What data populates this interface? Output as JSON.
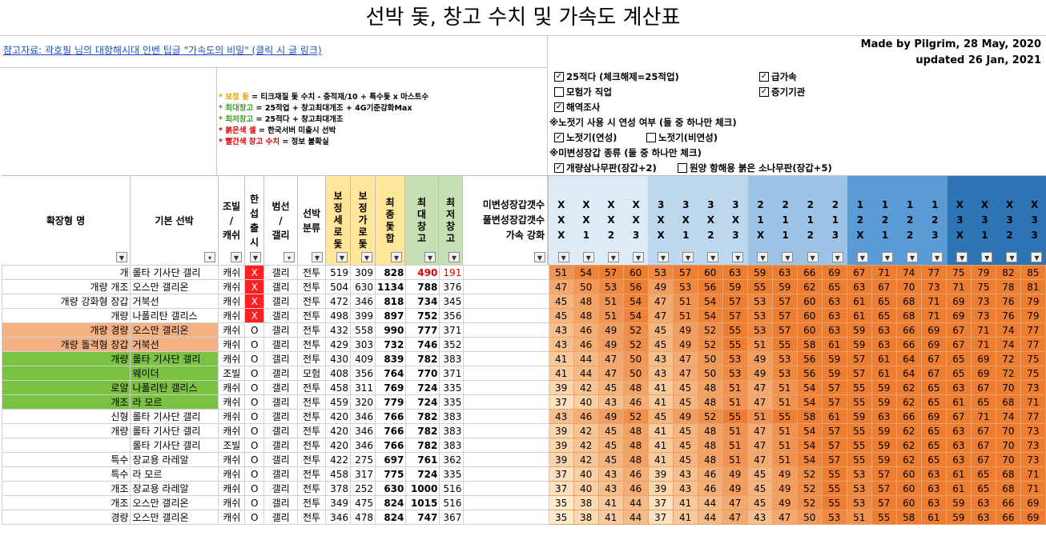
{
  "title": "선박 돛, 창고 수치 및 가속도 계산표",
  "reference_link": "참고자료: 곽호필 님의 대항해시대 인벤 팁글 \"가속도의 비밀\" (클릭 시 글 링크)",
  "credit": {
    "line1": "Made by Pilgrim, 28 May, 2020",
    "line2": "updated 26 Jan, 2021"
  },
  "legend": [
    {
      "key": "* 보정 돛",
      "text": " = 티크재질 돛 수치 - 충적재/10 + 특수돛 x 마스트수",
      "color": "orange"
    },
    {
      "key": "* 최대창고",
      "text": " = 25적업 + 창고최대개조 + 4G기준강화Max",
      "color": "green"
    },
    {
      "key": "* 최저창고",
      "text": " = 25적다 + 창고최대개조",
      "color": "green"
    },
    {
      "key": "* 붉은색 셀",
      "text": " = 한국서버 미출시 선박",
      "color": "red"
    },
    {
      "key": "* 빨간색 창고 수치",
      "text": " = 정보 불확실",
      "color": "red"
    }
  ],
  "options": {
    "opt1": {
      "label": "25적다 (체크해제=25적업)",
      "checked": true
    },
    "opt2": {
      "label": "급가속",
      "checked": true
    },
    "opt3": {
      "label": "모험가 직업",
      "checked": false
    },
    "opt4": {
      "label": "증기기관",
      "checked": true
    },
    "opt5": {
      "label": "해역조사",
      "checked": true
    },
    "note1": "※노젓기 사용 시 연성 여부 (둘 중 하나만 체크)",
    "opt6": {
      "label": "노젓기(연성)",
      "checked": true
    },
    "opt7": {
      "label": "노젓기(비연성)",
      "checked": false
    },
    "note2": "※미변성장갑 종류 (둘 중 하나만 체크)",
    "opt8": {
      "label": "개량삼나무판(장갑+2)",
      "checked": true
    },
    "opt9": {
      "label": "원양 항해용 붉은 소나무판(장갑+5)",
      "checked": false
    }
  },
  "headers": {
    "ext_name": "확장형 명",
    "base_ship": "기본 선박",
    "sail_type": "조빌 / 캐쉬",
    "kr_release": "한 섭 출 시",
    "sail_rig": "범선 / 갤리",
    "ship_class": "선박 분류",
    "adj_vert": "보 정 세 로 돛",
    "adj_horiz": "보 정 가 로 돛",
    "final_sail": "최 종 돛 합",
    "max_cargo": "최 대 창 고",
    "min_cargo": "최 저 창 고",
    "armor_label": "미변성장갑갯수\n풀변성장갑갯수\n가속 강화",
    "accel_groups": [
      {
        "r1": [
          "X",
          "X",
          "X",
          "X"
        ],
        "r2": [
          "X",
          "X",
          "X",
          "X"
        ],
        "r3": [
          "X",
          "1",
          "2",
          "3"
        ]
      },
      {
        "r1": [
          "3",
          "3",
          "3",
          "3"
        ],
        "r2": [
          "X",
          "X",
          "X",
          "X"
        ],
        "r3": [
          "X",
          "1",
          "2",
          "3"
        ]
      },
      {
        "r1": [
          "2",
          "2",
          "2",
          "2"
        ],
        "r2": [
          "1",
          "1",
          "1",
          "1"
        ],
        "r3": [
          "X",
          "1",
          "2",
          "3"
        ]
      },
      {
        "r1": [
          "1",
          "1",
          "1",
          "1"
        ],
        "r2": [
          "2",
          "2",
          "2",
          "2"
        ],
        "r3": [
          "X",
          "1",
          "2",
          "3"
        ]
      },
      {
        "r1": [
          "X",
          "X",
          "X",
          "X"
        ],
        "r2": [
          "3",
          "3",
          "3",
          "3"
        ],
        "r3": [
          "X",
          "1",
          "2",
          "3"
        ]
      }
    ]
  },
  "filter_icon": "dropdown-arrow-icon",
  "colors": {
    "orange_row": "#f4b183",
    "green_row": "#7cc242",
    "red_cell": "#ff2020",
    "adj_header": "#ffe699",
    "final_header": "#ffe699",
    "cargo_header": "#c6e0b4",
    "group_headers": [
      "#ddebf7",
      "#bdd7ee",
      "#9dc3e6",
      "#5b9bd5",
      "#2e75b6"
    ]
  },
  "rows": [
    {
      "prefix": "개",
      "base": "롤타 기사단 갤리",
      "sail": "캐쉬",
      "kr": "X",
      "rig": "갤리",
      "cls": "전투",
      "v": "519",
      "h": "309",
      "sum": "828",
      "max": "490",
      "min": "191",
      "hl": "none",
      "krRed": true,
      "cargoRed": true,
      "acc": [
        "51",
        "54",
        "57",
        "60",
        "53",
        "57",
        "60",
        "63",
        "59",
        "63",
        "66",
        "69",
        "67",
        "71",
        "74",
        "77",
        "75",
        "79",
        "82",
        "85"
      ]
    },
    {
      "prefix": "개량 개조",
      "base": "오스만 갤리온",
      "sail": "캐쉬",
      "kr": "X",
      "rig": "갤리",
      "cls": "전투",
      "v": "504",
      "h": "630",
      "sum": "1134",
      "max": "788",
      "min": "376",
      "hl": "none",
      "krRed": true,
      "cargoRed": false,
      "acc": [
        "47",
        "50",
        "53",
        "56",
        "49",
        "53",
        "56",
        "59",
        "55",
        "59",
        "62",
        "65",
        "63",
        "67",
        "70",
        "73",
        "71",
        "75",
        "78",
        "81"
      ]
    },
    {
      "prefix": "개량 강화형 장갑",
      "base": "거북선",
      "sail": "캐쉬",
      "kr": "X",
      "rig": "갤리",
      "cls": "전투",
      "v": "472",
      "h": "346",
      "sum": "818",
      "max": "734",
      "min": "345",
      "hl": "none",
      "krRed": true,
      "cargoRed": false,
      "acc": [
        "45",
        "48",
        "51",
        "54",
        "47",
        "51",
        "54",
        "57",
        "53",
        "57",
        "60",
        "63",
        "61",
        "65",
        "68",
        "71",
        "69",
        "73",
        "76",
        "79"
      ]
    },
    {
      "prefix": "개량",
      "base": "나폴리탄 갤리스",
      "sail": "캐쉬",
      "kr": "X",
      "rig": "갤리",
      "cls": "전투",
      "v": "498",
      "h": "399",
      "sum": "897",
      "max": "752",
      "min": "356",
      "hl": "none",
      "krRed": true,
      "cargoRed": false,
      "acc": [
        "45",
        "48",
        "51",
        "54",
        "47",
        "51",
        "54",
        "57",
        "53",
        "57",
        "60",
        "63",
        "61",
        "65",
        "68",
        "71",
        "69",
        "73",
        "76",
        "79"
      ]
    },
    {
      "prefix": "개량 경량",
      "base": "오스만 갤리온",
      "sail": "캐쉬",
      "kr": "O",
      "rig": "갤리",
      "cls": "전투",
      "v": "432",
      "h": "558",
      "sum": "990",
      "max": "777",
      "min": "371",
      "hl": "orange",
      "krRed": false,
      "cargoRed": false,
      "acc": [
        "43",
        "46",
        "49",
        "52",
        "45",
        "49",
        "52",
        "55",
        "53",
        "57",
        "60",
        "63",
        "59",
        "63",
        "66",
        "69",
        "67",
        "71",
        "74",
        "77"
      ]
    },
    {
      "prefix": "개량 돌격형 장갑",
      "base": "거북선",
      "sail": "캐쉬",
      "kr": "O",
      "rig": "갤리",
      "cls": "전투",
      "v": "429",
      "h": "303",
      "sum": "732",
      "max": "746",
      "min": "352",
      "hl": "orange",
      "krRed": false,
      "cargoRed": false,
      "acc": [
        "43",
        "46",
        "49",
        "52",
        "45",
        "49",
        "52",
        "55",
        "51",
        "55",
        "58",
        "61",
        "59",
        "63",
        "66",
        "69",
        "67",
        "71",
        "74",
        "77"
      ]
    },
    {
      "prefix": "개량",
      "base": "롤타 기사단 갤리",
      "sail": "캐쉬",
      "kr": "O",
      "rig": "갤리",
      "cls": "전투",
      "v": "430",
      "h": "409",
      "sum": "839",
      "max": "782",
      "min": "383",
      "hl": "green",
      "krRed": false,
      "cargoRed": false,
      "acc": [
        "41",
        "44",
        "47",
        "50",
        "43",
        "47",
        "50",
        "53",
        "49",
        "53",
        "56",
        "59",
        "57",
        "61",
        "64",
        "67",
        "65",
        "69",
        "72",
        "75"
      ]
    },
    {
      "prefix": "",
      "base": "웨이더",
      "sail": "조빌",
      "kr": "O",
      "rig": "갤리",
      "cls": "모험",
      "v": "408",
      "h": "356",
      "sum": "764",
      "max": "770",
      "min": "371",
      "hl": "green",
      "krRed": false,
      "cargoRed": false,
      "acc": [
        "41",
        "44",
        "47",
        "50",
        "43",
        "47",
        "50",
        "53",
        "49",
        "53",
        "56",
        "59",
        "57",
        "61",
        "64",
        "67",
        "65",
        "69",
        "72",
        "75"
      ]
    },
    {
      "prefix": "로얄",
      "base": "나폴리탄 갤리스",
      "sail": "캐쉬",
      "kr": "O",
      "rig": "갤리",
      "cls": "전투",
      "v": "458",
      "h": "311",
      "sum": "769",
      "max": "724",
      "min": "335",
      "hl": "green",
      "krRed": false,
      "cargoRed": false,
      "acc": [
        "39",
        "42",
        "45",
        "48",
        "41",
        "45",
        "48",
        "51",
        "47",
        "51",
        "54",
        "57",
        "55",
        "59",
        "62",
        "65",
        "63",
        "67",
        "70",
        "73"
      ]
    },
    {
      "prefix": "개조",
      "base": "라 모르",
      "sail": "캐쉬",
      "kr": "O",
      "rig": "갤리",
      "cls": "전투",
      "v": "459",
      "h": "320",
      "sum": "779",
      "max": "724",
      "min": "335",
      "hl": "green",
      "krRed": false,
      "cargoRed": false,
      "acc": [
        "37",
        "40",
        "43",
        "46",
        "41",
        "45",
        "48",
        "51",
        "47",
        "51",
        "54",
        "57",
        "55",
        "59",
        "62",
        "65",
        "61",
        "65",
        "68",
        "71"
      ]
    },
    {
      "prefix": "신형",
      "base": "롤타 기사단 갤리",
      "sail": "캐쉬",
      "kr": "O",
      "rig": "갤리",
      "cls": "전투",
      "v": "420",
      "h": "346",
      "sum": "766",
      "max": "782",
      "min": "383",
      "hl": "none",
      "krRed": false,
      "cargoRed": false,
      "acc": [
        "43",
        "46",
        "49",
        "52",
        "45",
        "49",
        "52",
        "55",
        "51",
        "55",
        "58",
        "61",
        "59",
        "63",
        "66",
        "69",
        "67",
        "71",
        "74",
        "77"
      ]
    },
    {
      "prefix": "개량",
      "base": "롤타 기사단 갤리",
      "sail": "캐쉬",
      "kr": "O",
      "rig": "갤리",
      "cls": "전투",
      "v": "420",
      "h": "346",
      "sum": "766",
      "max": "782",
      "min": "383",
      "hl": "none",
      "krRed": false,
      "cargoRed": false,
      "acc": [
        "39",
        "42",
        "45",
        "48",
        "41",
        "45",
        "48",
        "51",
        "47",
        "51",
        "54",
        "57",
        "55",
        "59",
        "62",
        "65",
        "63",
        "67",
        "70",
        "73"
      ]
    },
    {
      "prefix": "",
      "base": "롤타 기사단 갤리",
      "sail": "조빌",
      "kr": "O",
      "rig": "갤리",
      "cls": "전투",
      "v": "420",
      "h": "346",
      "sum": "766",
      "max": "782",
      "min": "383",
      "hl": "none",
      "krRed": false,
      "cargoRed": false,
      "acc": [
        "39",
        "42",
        "45",
        "48",
        "41",
        "45",
        "48",
        "51",
        "47",
        "51",
        "54",
        "57",
        "55",
        "59",
        "62",
        "65",
        "63",
        "67",
        "70",
        "73"
      ]
    },
    {
      "prefix": "특수",
      "base": "장교용 라레알",
      "sail": "캐쉬",
      "kr": "O",
      "rig": "갤리",
      "cls": "전투",
      "v": "422",
      "h": "275",
      "sum": "697",
      "max": "761",
      "min": "362",
      "hl": "none",
      "krRed": false,
      "cargoRed": false,
      "acc": [
        "39",
        "42",
        "45",
        "48",
        "41",
        "45",
        "48",
        "51",
        "47",
        "51",
        "54",
        "57",
        "55",
        "59",
        "62",
        "65",
        "63",
        "67",
        "70",
        "73"
      ]
    },
    {
      "prefix": "특수",
      "base": "라 모르",
      "sail": "캐쉬",
      "kr": "O",
      "rig": "갤리",
      "cls": "전투",
      "v": "458",
      "h": "317",
      "sum": "775",
      "max": "724",
      "min": "335",
      "hl": "none",
      "krRed": false,
      "cargoRed": false,
      "acc": [
        "37",
        "40",
        "43",
        "46",
        "39",
        "43",
        "46",
        "49",
        "45",
        "49",
        "52",
        "55",
        "53",
        "57",
        "60",
        "63",
        "61",
        "65",
        "68",
        "71"
      ]
    },
    {
      "prefix": "개조",
      "base": "장교용 라레알",
      "sail": "캐쉬",
      "kr": "O",
      "rig": "갤리",
      "cls": "전투",
      "v": "378",
      "h": "252",
      "sum": "630",
      "max": "1000",
      "min": "516",
      "hl": "none",
      "krRed": false,
      "cargoRed": false,
      "acc": [
        "37",
        "40",
        "43",
        "46",
        "39",
        "43",
        "46",
        "49",
        "45",
        "49",
        "52",
        "55",
        "53",
        "57",
        "60",
        "63",
        "61",
        "65",
        "68",
        "71"
      ]
    },
    {
      "prefix": "개조",
      "base": "오스만 갤리온",
      "sail": "캐쉬",
      "kr": "O",
      "rig": "갤리",
      "cls": "전투",
      "v": "349",
      "h": "475",
      "sum": "824",
      "max": "1015",
      "min": "516",
      "hl": "none",
      "krRed": false,
      "cargoRed": false,
      "acc": [
        "35",
        "38",
        "41",
        "44",
        "37",
        "41",
        "44",
        "47",
        "45",
        "49",
        "52",
        "55",
        "53",
        "57",
        "60",
        "63",
        "59",
        "63",
        "66",
        "69"
      ]
    },
    {
      "prefix": "경량",
      "base": "오스만 갤리온",
      "sail": "캐쉬",
      "kr": "O",
      "rig": "갤리",
      "cls": "전투",
      "v": "346",
      "h": "478",
      "sum": "824",
      "max": "747",
      "min": "367",
      "hl": "none",
      "krRed": false,
      "cargoRed": false,
      "acc": [
        "35",
        "38",
        "41",
        "44",
        "37",
        "41",
        "44",
        "47",
        "43",
        "47",
        "50",
        "53",
        "51",
        "55",
        "58",
        "61",
        "59",
        "63",
        "66",
        "69"
      ]
    }
  ]
}
